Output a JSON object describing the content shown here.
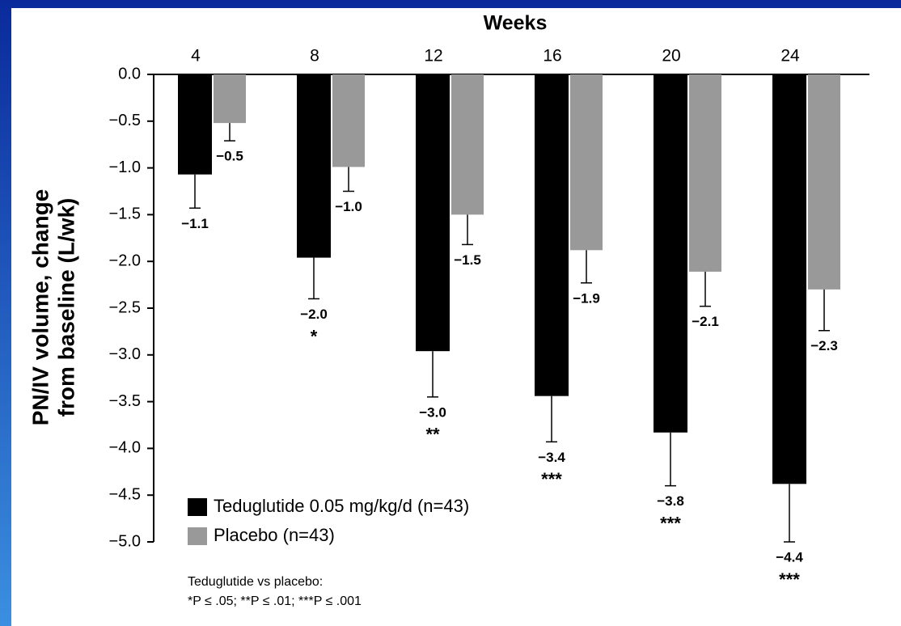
{
  "chart_data": {
    "type": "bar",
    "x_label": "Weeks",
    "y_label": [
      "PN/IV volume, change",
      "from baseline (L/wk)"
    ],
    "categories": [
      "4",
      "8",
      "12",
      "16",
      "20",
      "24"
    ],
    "series": [
      {
        "name": "Teduglutide 0.05 mg/kg/d (n=43)",
        "color": "#000000",
        "values": [
          -1.07,
          -1.96,
          -2.96,
          -3.44,
          -3.83,
          -4.38
        ],
        "value_labels": [
          "−1.1",
          "−2.0",
          "−3.0",
          "−3.4",
          "−3.8",
          "−4.4"
        ],
        "errors": [
          0.36,
          0.44,
          0.49,
          0.49,
          0.57,
          0.62
        ],
        "significance": [
          null,
          "*",
          "**",
          "***",
          "***",
          "***"
        ]
      },
      {
        "name": "Placebo (n=43)",
        "color": "#999999",
        "values": [
          -0.52,
          -0.99,
          -1.5,
          -1.88,
          -2.11,
          -2.3
        ],
        "value_labels": [
          "−0.5",
          "−1.0",
          "−1.5",
          "−1.9",
          "−2.1",
          "−2.3"
        ],
        "errors": [
          0.19,
          0.26,
          0.32,
          0.35,
          0.37,
          0.44
        ]
      }
    ],
    "ylim": [
      -5,
      0
    ],
    "yticks": [
      {
        "value": 0,
        "label": "0.0"
      },
      {
        "value": -0.5,
        "label": "−0.5"
      },
      {
        "value": -1,
        "label": "−1.0"
      },
      {
        "value": -1.5,
        "label": "−1.5"
      },
      {
        "value": -2,
        "label": "−2.0"
      },
      {
        "value": -2.5,
        "label": "−2.5"
      },
      {
        "value": -3,
        "label": "−3.0"
      },
      {
        "value": -3.5,
        "label": "−3.5"
      },
      {
        "value": -4,
        "label": "−4.0"
      },
      {
        "value": -4.5,
        "label": "−4.5"
      },
      {
        "value": -5,
        "label": "−5.0"
      }
    ],
    "legend": "lower left",
    "footnote": [
      "Teduglutide vs placebo:",
      "*P ≤ .05; **P ≤ .01; ***P ≤ .001"
    ]
  }
}
